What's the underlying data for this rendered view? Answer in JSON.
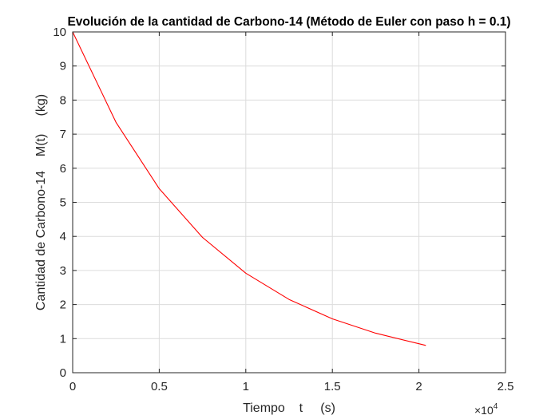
{
  "chart_data": {
    "type": "line",
    "title": "Evolución de la cantidad de Carbono-14 (Método de Euler con paso h = 0.1)",
    "xlabel": "Tiempo    t     (s)",
    "ylabel": "Cantidad de Carbono-14    M(t)     (kg)",
    "x_exponent_label": "×10",
    "x_exponent_power": "4",
    "xlim": [
      0,
      25000
    ],
    "ylim": [
      0,
      10
    ],
    "x_ticks": [
      0,
      5000,
      10000,
      15000,
      20000,
      25000
    ],
    "x_tick_labels": [
      "0",
      "0.5",
      "1",
      "1.5",
      "2",
      "2.5"
    ],
    "y_ticks": [
      0,
      1,
      2,
      3,
      4,
      5,
      6,
      7,
      8,
      9,
      10
    ],
    "y_tick_labels": [
      "0",
      "1",
      "2",
      "3",
      "4",
      "5",
      "6",
      "7",
      "8",
      "9",
      "10"
    ],
    "grid": true,
    "line_color": "#ff0000",
    "series": [
      {
        "x": [
          0,
          2500,
          5000,
          7500,
          10000,
          12500,
          15000,
          17500,
          20000,
          20400
        ],
        "y": [
          10,
          7.35,
          5.4,
          3.97,
          2.92,
          2.15,
          1.58,
          1.16,
          0.85,
          0.8
        ]
      }
    ]
  }
}
